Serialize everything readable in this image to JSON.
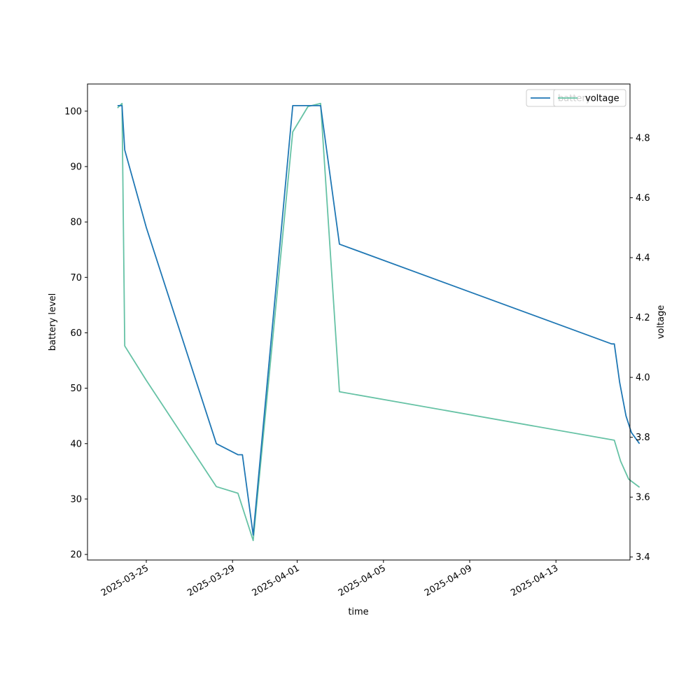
{
  "chart_data": {
    "type": "line",
    "title": "",
    "xlabel": "time",
    "ylabel_left": "battery level",
    "ylabel_right": "voltage",
    "x_tick_labels": [
      "2025-03-25",
      "2025-03-29",
      "2025-04-01",
      "2025-04-05",
      "2025-04-09",
      "2025-04-13"
    ],
    "y_left_ticks": [
      20,
      30,
      40,
      50,
      60,
      70,
      80,
      90,
      100
    ],
    "y_right_ticks": [
      "3.4",
      "3.6",
      "3.8",
      "4.0",
      "4.2",
      "4.4",
      "4.6",
      "4.8"
    ],
    "ylim_left": [
      19.0,
      104.9
    ],
    "ylim_right": [
      3.39,
      4.98
    ],
    "grid": false,
    "legend_placement": "top-right",
    "series": [
      {
        "name": "battery",
        "axis": "left",
        "color": "#1f77b4",
        "points": [
          [
            "2025-03-23 16:00",
            101
          ],
          [
            "2025-03-23 21:00",
            101
          ],
          [
            "2025-03-24 00:00",
            93
          ],
          [
            "2025-03-25 00:00",
            79
          ],
          [
            "2025-03-28 06:00",
            40
          ],
          [
            "2025-03-29 06:00",
            38
          ],
          [
            "2025-03-29 11:00",
            38
          ],
          [
            "2025-03-29 23:00",
            23.5
          ],
          [
            "2025-03-31 19:00",
            101
          ],
          [
            "2025-04-01 12:00",
            101
          ],
          [
            "2025-04-02 02:00",
            101
          ],
          [
            "2025-04-02 23:00",
            76
          ],
          [
            "2025-04-15 14:00",
            58
          ],
          [
            "2025-04-15 17:00",
            58
          ],
          [
            "2025-04-15 23:00",
            51
          ],
          [
            "2025-04-16 06:00",
            45
          ],
          [
            "2025-04-16 12:00",
            42
          ],
          [
            "2025-04-16 21:00",
            40
          ]
        ]
      },
      {
        "name": "voltage",
        "axis": "right",
        "color": "#66c2a5",
        "points": [
          [
            "2025-03-23 16:00",
            4.9
          ],
          [
            "2025-03-23 21:00",
            4.915
          ],
          [
            "2025-03-24 00:00",
            4.105
          ],
          [
            "2025-03-25 00:00",
            3.99
          ],
          [
            "2025-03-28 06:00",
            3.635
          ],
          [
            "2025-03-29 06:00",
            3.613
          ],
          [
            "2025-03-29 23:00",
            3.455
          ],
          [
            "2025-03-31 19:00",
            4.82
          ],
          [
            "2025-04-01 12:00",
            4.905
          ],
          [
            "2025-04-02 02:00",
            4.915
          ],
          [
            "2025-04-02 23:00",
            3.952
          ],
          [
            "2025-04-15 17:00",
            3.79
          ],
          [
            "2025-04-16 00:00",
            3.72
          ],
          [
            "2025-04-16 09:00",
            3.66
          ],
          [
            "2025-04-16 21:00",
            3.633
          ]
        ]
      }
    ],
    "legends": [
      {
        "entries": [
          {
            "label": "battery",
            "color": "#1f77b4"
          }
        ]
      },
      {
        "entries": [
          {
            "label": "voltage",
            "color": "#66c2a5"
          }
        ]
      }
    ]
  }
}
